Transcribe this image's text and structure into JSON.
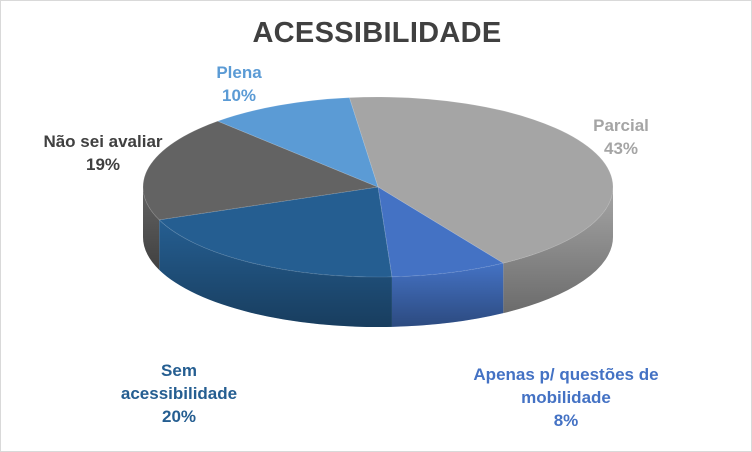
{
  "chart_data": {
    "type": "pie",
    "title": "ACESSIBILIDADE",
    "slices": [
      {
        "label": "Parcial",
        "value": 43,
        "value_label": "43%",
        "color": "#a5a5a5"
      },
      {
        "label": "Apenas p/ questões de mobilidade",
        "label_lines": [
          "Apenas p/ questões de",
          "mobilidade"
        ],
        "value": 8,
        "value_label": "8%",
        "color": "#4472c4"
      },
      {
        "label": "Sem acessibilidade",
        "label_lines": [
          "Sem",
          "acessibilidade"
        ],
        "value": 20,
        "value_label": "20%",
        "color": "#255e91"
      },
      {
        "label": "Não sei avaliar",
        "value": 19,
        "value_label": "19%",
        "color": "#636363"
      },
      {
        "label": "Plena",
        "value": 10,
        "value_label": "10%",
        "color": "#5b9bd5"
      }
    ]
  }
}
